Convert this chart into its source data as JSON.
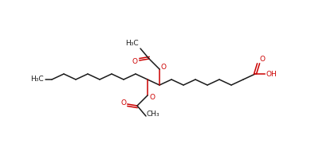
{
  "background": "#ffffff",
  "bond_color": "#1a1a1a",
  "oxygen_color": "#cc0000",
  "text_color": "#1a1a1a",
  "fig_width": 4.0,
  "fig_height": 2.0,
  "dpi": 100,
  "lw": 1.1,
  "fs": 6.5,
  "step_x": 15.0,
  "step_y": 7.0,
  "y_main": 100,
  "c10_x": 185,
  "xlim": [
    0,
    400
  ],
  "ylim": [
    0,
    200
  ]
}
